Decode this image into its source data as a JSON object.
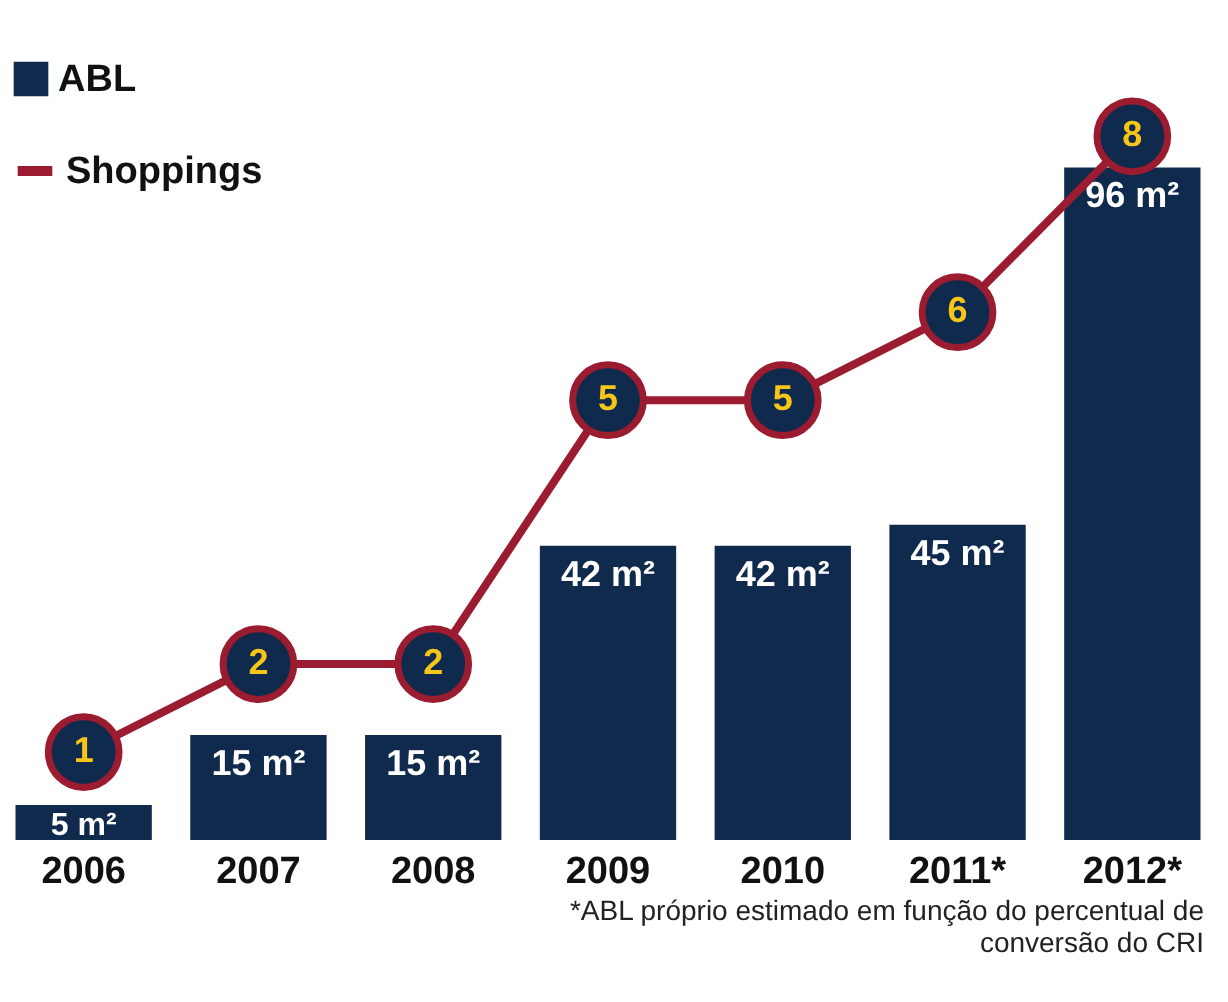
{
  "chart_data": {
    "type": "bar",
    "categories": [
      "2006",
      "2007",
      "2008",
      "2009",
      "2010",
      "2011*",
      "2012*"
    ],
    "series": [
      {
        "name": "ABL",
        "color": "#0f2a4d",
        "values": [
          5,
          15,
          15,
          42,
          42,
          45,
          96
        ],
        "value_labels": [
          "5 m²",
          "15 m²",
          "15 m²",
          "42 m²",
          "42 m²",
          "45 m²",
          "96 m²"
        ]
      },
      {
        "name": "Shoppings",
        "type": "line",
        "axis": "y2",
        "color": "#9b1b30",
        "marker": "circle",
        "values": [
          1,
          2,
          2,
          5,
          5,
          6,
          8
        ],
        "value_labels": [
          "1",
          "2",
          "2",
          "5",
          "5",
          "6",
          "8"
        ]
      }
    ],
    "legend": "top left",
    "annotations": [
      "*ABL próprio estimado em função do percentual de conversão do CRI"
    ]
  }
}
